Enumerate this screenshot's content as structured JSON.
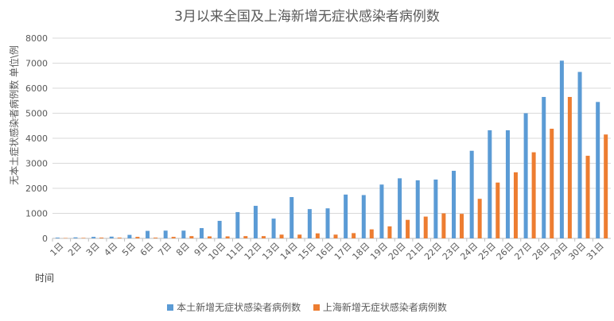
{
  "chart_data": {
    "type": "bar",
    "title": "3月以来全国及上海新增无症状感染者病例数",
    "xlabel": "时间",
    "ylabel": "无本土症状感染者病例数 单位\\例",
    "ylim": [
      0,
      8000
    ],
    "yticks": [
      0,
      1000,
      2000,
      3000,
      4000,
      5000,
      6000,
      7000,
      8000
    ],
    "grid": true,
    "legend_position": "bottom",
    "categories": [
      "1日",
      "2日",
      "3日",
      "4日",
      "5日",
      "6日",
      "7日",
      "8日",
      "9日",
      "10日",
      "11日",
      "12日",
      "13日",
      "14日",
      "15日",
      "16日",
      "17日",
      "18日",
      "19日",
      "20日",
      "21日",
      "22日",
      "23日",
      "24日",
      "25日",
      "26日",
      "27日",
      "28日",
      "29日",
      "30日",
      "31日"
    ],
    "series": [
      {
        "name": "本土新增无症状感染者病例数",
        "color": "#5b9bd5",
        "values": [
          30,
          40,
          60,
          70,
          140,
          300,
          310,
          310,
          410,
          700,
          1050,
          1300,
          790,
          1650,
          1170,
          1200,
          1750,
          1730,
          2150,
          2400,
          2320,
          2350,
          2700,
          3500,
          4320,
          4320,
          5000,
          5650,
          7100,
          6650,
          5450
        ]
      },
      {
        "name": "上海新增无症状感染者病例数",
        "color": "#ed7d31",
        "values": [
          15,
          20,
          30,
          30,
          60,
          30,
          60,
          90,
          80,
          80,
          90,
          90,
          150,
          150,
          200,
          150,
          210,
          360,
          480,
          740,
          870,
          1000,
          980,
          1580,
          2230,
          2640,
          3440,
          4380,
          5650,
          3300,
          4150
        ]
      }
    ]
  }
}
